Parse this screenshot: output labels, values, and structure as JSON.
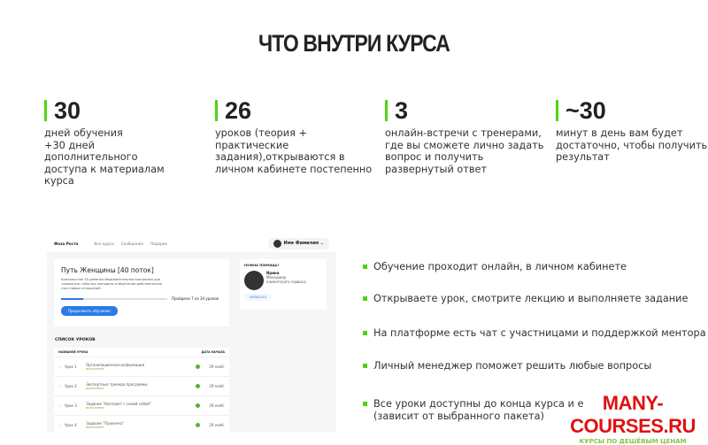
{
  "title": "ЧТО ВНУТРИ КУРСА",
  "stats": [
    {
      "num": "30",
      "text": "дней обучения\n+30 дней дополнительного доступа к материалам курса"
    },
    {
      "num": "26",
      "text": "уроков (теория + практические задания),открываются в личном кабинете постепенно"
    },
    {
      "num": "3",
      "text": "онлайн-встречи с тренерами, где вы сможете лично задать вопрос и получить развернутый ответ"
    },
    {
      "num": "~30",
      "text": "минут в день вам будет достаточно, чтобы получить результат"
    }
  ],
  "mock": {
    "logo": "Фаза Роста",
    "nav": [
      "Все курсы",
      "Сообщения",
      "Подарки"
    ],
    "user": "Имя Фамилия",
    "course_title": "Путь Женщины [40 поток]",
    "course_desc": "Комплексная 30-дневная образовательная программа для «прокачки» себя как женщины и обретения действительно счастливых отношений",
    "progress_text": "Пройдено 7 из 34 уроков",
    "progress": 0.21,
    "continue": "Продолжить обучение",
    "help_title": "НУЖНА ПОМОЩЬ?",
    "manager_name": "Ирина",
    "manager_role": "Менеджер клиентского сервиса",
    "write": "НАПИСАТЬ",
    "list_title": "СПИСОК УРОКОВ",
    "col_name": "НАЗВАНИЕ УРОКА",
    "col_date": "ДАТА НАЧАЛА",
    "lessons": [
      {
        "n": "Урок 1",
        "t": "Организационная информация",
        "s": "выполнено",
        "d": "29 нояб."
      },
      {
        "n": "Урок 2",
        "t": "Экспертные тренера программы",
        "s": "выполнено",
        "d": "29 нояб."
      },
      {
        "n": "Урок 3",
        "t": "Задание \"Контракт с самой собой\"",
        "s": "выполнено",
        "d": "29 нояб."
      },
      {
        "n": "Урок 4",
        "t": "Задание \"Прокачка\"",
        "s": "выполнено",
        "d": "29 нояб."
      }
    ]
  },
  "bullets": [
    "Обучение проходит онлайн, в личном кабинете",
    "Открываете урок, смотрите лекцию и выполняете задание",
    "На платформе есть чат с участницами и поддержкой ментора",
    "Личный менеджер поможет решить любые вопросы",
    "Все уроки доступны до конца курса и е\n(зависит от выбранного пакета)"
  ],
  "watermark": {
    "main": "MANY-COURSES.RU",
    "sub": "КУРСЫ ПО ДЕШЁВЫМ ЦЕНАМ"
  },
  "colors": {
    "accent": "#4cd60f",
    "button": "#2c7be5"
  }
}
